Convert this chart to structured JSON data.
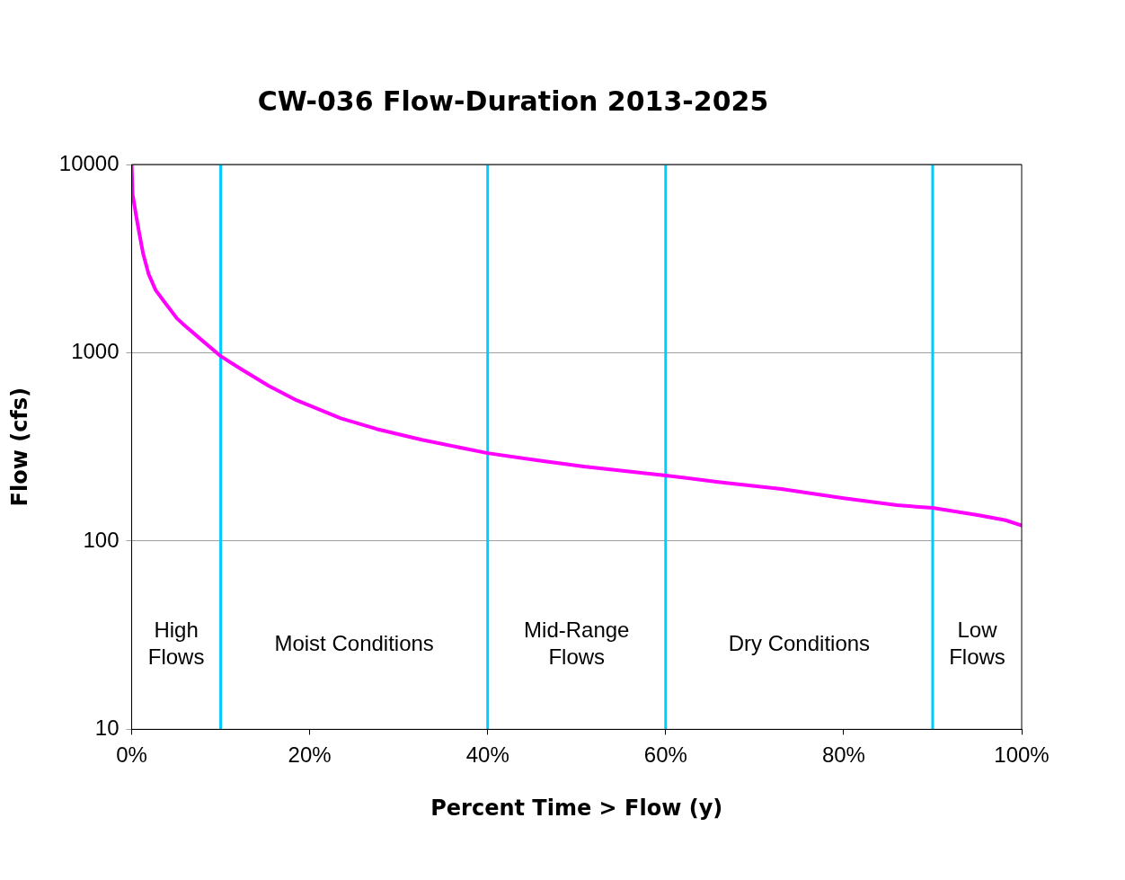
{
  "chart_data": {
    "type": "line",
    "title": "CW-036 Flow-Duration 2013-2025",
    "xlabel": "Percent Time > Flow (y)",
    "ylabel": "Flow (cfs)",
    "series": [
      {
        "color": "#ff00ff",
        "x": [
          0,
          0.1,
          0.5,
          0.9,
          1.3,
          1.9,
          2.7,
          3.8,
          5.1,
          6,
          7.4,
          10,
          12.4,
          15.4,
          18.5,
          23.5,
          27.5,
          32.6,
          40,
          45.7,
          50.8,
          60,
          65.9,
          73,
          80,
          86,
          90,
          95.2,
          98.2,
          100
        ],
        "values": [
          10000,
          7000,
          5350,
          4200,
          3340,
          2620,
          2150,
          1830,
          1520,
          1390,
          1220,
          960,
          813,
          667,
          560,
          449,
          394,
          345,
          293,
          268,
          249,
          223,
          206,
          189,
          169,
          155,
          150,
          137,
          129,
          121
        ]
      }
    ],
    "xlim": [
      0,
      100
    ],
    "xticks": [
      {
        "value": 0,
        "label": "0%"
      },
      {
        "value": 20,
        "label": "20%"
      },
      {
        "value": 40,
        "label": "40%"
      },
      {
        "value": 60,
        "label": "60%"
      },
      {
        "value": 80,
        "label": "80%"
      },
      {
        "value": 100,
        "label": "100%"
      }
    ],
    "ylim": [
      10,
      10000
    ],
    "yticks": [
      10,
      100,
      1000,
      10000
    ],
    "log": "y",
    "grid": "y",
    "legend": false,
    "marker": "none",
    "line_style": "solid",
    "ref_lines": [
      {
        "axis": "x",
        "value": 10,
        "color": "#00ccff"
      },
      {
        "axis": "x",
        "value": 40,
        "color": "#00ccff"
      },
      {
        "axis": "x",
        "value": 60,
        "color": "#00ccff"
      },
      {
        "axis": "x",
        "value": 90,
        "color": "#00ccff"
      }
    ],
    "annotations": [
      "High\nFlows",
      "Moist Conditions",
      "Mid-Range\nFlows",
      "Dry Conditions",
      "Low\nFlows"
    ]
  }
}
